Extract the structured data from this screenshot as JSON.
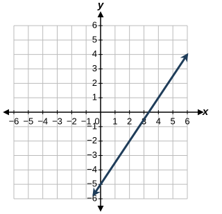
{
  "chart_data": {
    "type": "line",
    "x_label": "x",
    "y_label": "y",
    "x": [
      -0.5,
      6
    ],
    "series": [
      {
        "color": "#1f3d5a",
        "values": [
          -5.75,
          4
        ]
      }
    ],
    "xlim": [
      -6,
      6
    ],
    "ylim": [
      -6,
      6
    ],
    "xticks": [
      {
        "value": -6,
        "label": "−6"
      },
      {
        "value": -5,
        "label": "−5"
      },
      {
        "value": -4,
        "label": "−4"
      },
      {
        "value": -3,
        "label": "−3"
      },
      {
        "value": -2,
        "label": "−2"
      },
      {
        "value": -1,
        "label": "−1"
      },
      0,
      1,
      2,
      3,
      4,
      5,
      6
    ],
    "yticks": [
      {
        "value": -6,
        "label": "−6"
      },
      {
        "value": -5,
        "label": "−5"
      },
      {
        "value": -4,
        "label": "−4"
      },
      {
        "value": -3,
        "label": "−3"
      },
      {
        "value": -2,
        "label": "−2"
      },
      {
        "value": -1,
        "label": "−1"
      },
      1,
      2,
      3,
      4,
      5,
      6
    ],
    "grid": true
  }
}
